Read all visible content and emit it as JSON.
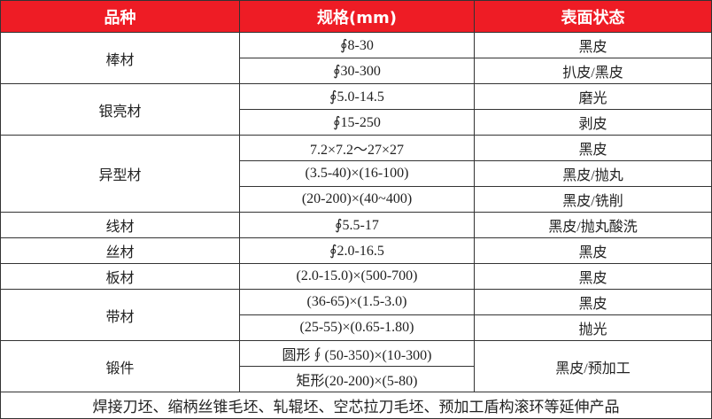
{
  "header": {
    "colors": {
      "header_bg": "#ee1c25"
    },
    "columns": [
      "品种",
      "规格(mm)",
      "表面状态"
    ]
  },
  "groups": [
    {
      "name": "棒材",
      "rows": [
        {
          "spec": "∮8-30",
          "surface": "黑皮"
        },
        {
          "spec": "∮30-300",
          "surface": "扒皮/黑皮"
        }
      ]
    },
    {
      "name": "银亮材",
      "rows": [
        {
          "spec": "∮5.0-14.5",
          "surface": "磨光"
        },
        {
          "spec": "∮15-250",
          "surface": "剥皮"
        }
      ]
    },
    {
      "name": "异型材",
      "rows": [
        {
          "spec": "7.2×7.2～27×27",
          "surface": "黑皮"
        },
        {
          "spec": "(3.5-40)×(16-100)",
          "surface": "黑皮/抛丸"
        },
        {
          "spec": "(20-200)×(40~400)",
          "surface": "黑皮/铣削"
        }
      ]
    },
    {
      "name": "线材",
      "rows": [
        {
          "spec": "∮5.5-17",
          "surface": "黑皮/抛丸酸洗"
        }
      ]
    },
    {
      "name": "丝材",
      "rows": [
        {
          "spec": "∮2.0-16.5",
          "surface": "黑皮"
        }
      ]
    },
    {
      "name": "板材",
      "rows": [
        {
          "spec": "(2.0-15.0)×(500-700)",
          "surface": "黑皮"
        }
      ]
    },
    {
      "name": "带材",
      "rows": [
        {
          "spec": "(36-65)×(1.5-3.0)",
          "surface": "黑皮"
        },
        {
          "spec": "(25-55)×(0.65-1.80)",
          "surface": "抛光"
        }
      ]
    },
    {
      "name": "锻件",
      "merged_surface": "黑皮/预加工",
      "rows": [
        {
          "spec": "圆形∮(50-350)×(10-300)"
        },
        {
          "spec": "矩形(20-200)×(5-80)"
        }
      ]
    }
  ],
  "footer": "焊接刀坯、缩柄丝锥毛坯、轧辊坯、空芯拉刀毛坯、预加工盾构滚环等延伸产品"
}
